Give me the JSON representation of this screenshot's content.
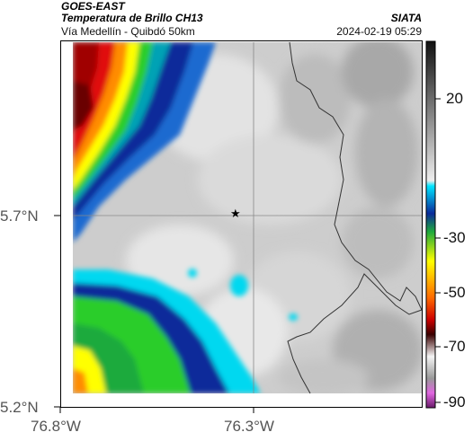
{
  "header": {
    "satellite": "GOES-EAST",
    "product": "Temperatura de Brillo CH13",
    "region": "Vía Medellín - Quibdó 50km",
    "source": "SIATA",
    "datetime": "2024-02-19 05:29"
  },
  "axes": {
    "lat_labels": [
      "5.7°N",
      "5.2°N"
    ],
    "lon_labels": [
      "76.8°W",
      "76.3°W"
    ]
  },
  "colorbar": {
    "ticks": [
      "20",
      "-30",
      "-50",
      "-70",
      "-90"
    ]
  },
  "marker": {
    "symbol": "★",
    "name": "station-star"
  },
  "colors": {
    "cold_red": "#8b0000",
    "orange": "#ff6a00",
    "yellow": "#ffff00",
    "green": "#2ccd2c",
    "cyan": "#00e5ff",
    "blue": "#0a2a9a",
    "warm_gray": "#cfcfcf"
  }
}
